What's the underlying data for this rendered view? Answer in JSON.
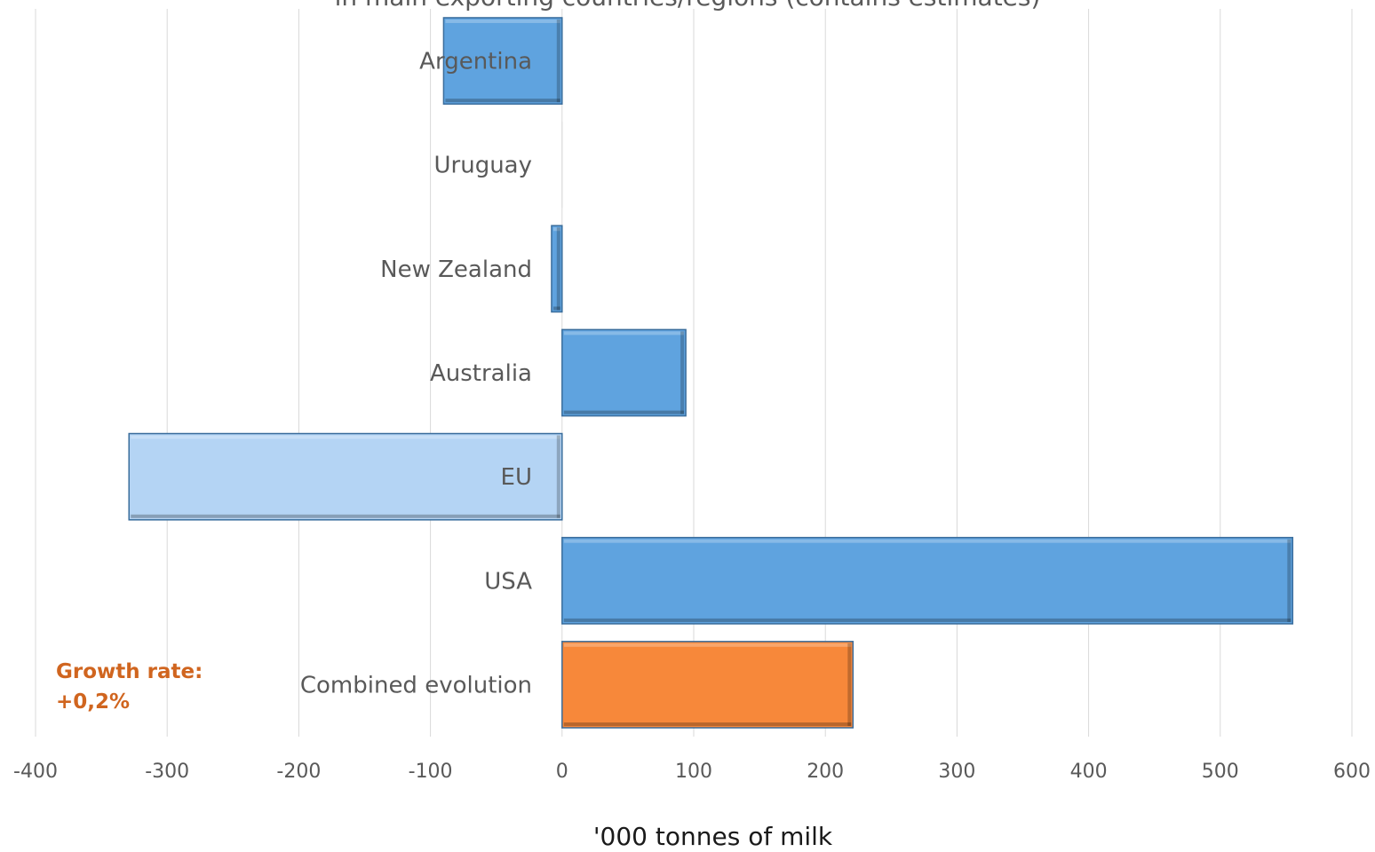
{
  "chart_data": {
    "type": "bar",
    "orientation": "horizontal",
    "subtitle": "in main exporting countries/regions (contains estimates)",
    "xlabel": "'000 tonnes of milk",
    "xlim": [
      -400,
      600
    ],
    "xticks": [
      -400,
      -300,
      -200,
      -100,
      0,
      100,
      200,
      300,
      400,
      500,
      600
    ],
    "grid": true,
    "categories": [
      "Argentina",
      "Uruguay",
      "New Zealand",
      "Australia",
      "EU",
      "USA",
      "Combined evolution"
    ],
    "values": [
      -90,
      0,
      -8,
      94,
      -329,
      555,
      221
    ],
    "colors": [
      "#5fa3df",
      "#5fa3df",
      "#5fa3df",
      "#5fa3df",
      "#b4d4f4",
      "#5fa3df",
      "#f7883a"
    ],
    "annotation": {
      "line1": "Growth rate:",
      "line2": "+0,2%",
      "color": "#d0651f"
    }
  }
}
